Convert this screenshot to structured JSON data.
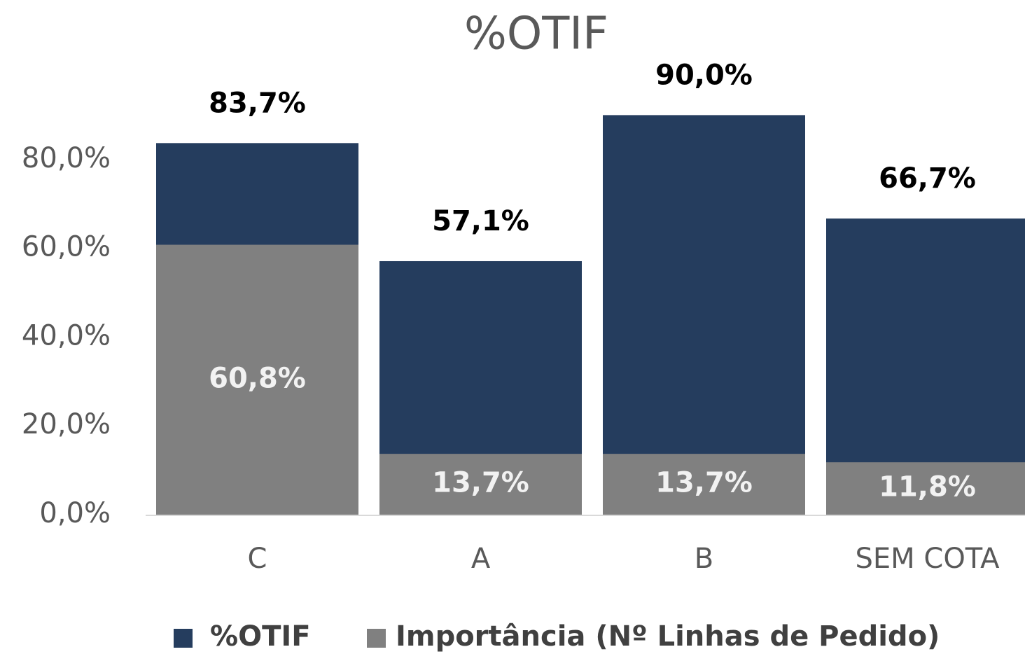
{
  "chart_data": {
    "type": "bar",
    "title": "%OTIF",
    "categories": [
      "C",
      "A",
      "B",
      "SEM COTA"
    ],
    "series": [
      {
        "name": "%OTIF",
        "color": "#253d5e",
        "values": [
          83.7,
          57.1,
          90.0,
          66.7
        ],
        "value_labels": [
          "83,7%",
          "57,1%",
          "90,0%",
          "66,7%"
        ]
      },
      {
        "name": "Importância (Nº Linhas de Pedido)",
        "color": "#808080",
        "values": [
          60.8,
          13.7,
          13.7,
          11.8
        ],
        "value_labels": [
          "60,8%",
          "13,7%",
          "13,7%",
          "11,8%"
        ]
      }
    ],
    "ylim": [
      0,
      100
    ],
    "yticks": [
      {
        "value": 0,
        "label": "0,0%"
      },
      {
        "value": 20,
        "label": "20,0%"
      },
      {
        "value": 40,
        "label": "40,0%"
      },
      {
        "value": 60,
        "label": "60,0%"
      },
      {
        "value": 80,
        "label": "80,0%"
      }
    ],
    "grid": false,
    "legend": "bottom",
    "overlap": true
  }
}
